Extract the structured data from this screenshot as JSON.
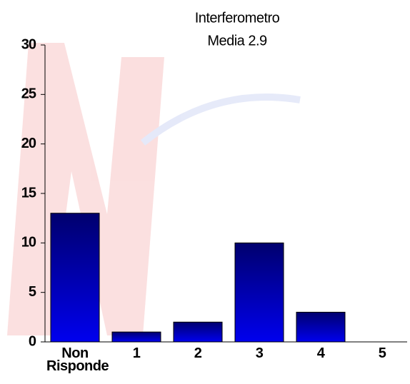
{
  "chart_data": {
    "type": "bar",
    "title": "Interferometro",
    "subtitle": "Media 2.9",
    "categories": [
      "Non Risponde",
      "1",
      "2",
      "3",
      "4",
      "5"
    ],
    "values": [
      13,
      1,
      2,
      10,
      3,
      0
    ],
    "color": "#0000ee",
    "ylim": [
      0,
      30
    ],
    "yticks": [
      0,
      5,
      10,
      15,
      20,
      25,
      30
    ]
  }
}
